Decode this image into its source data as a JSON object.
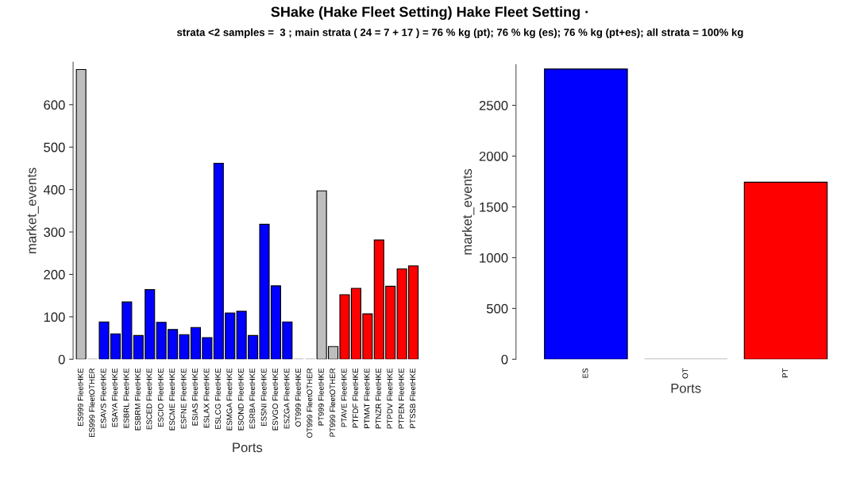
{
  "chart_data": [
    {
      "type": "bar",
      "title": "SHake (Hake Fleet Setting) Hake Fleet Setting ·",
      "subtitle": "strata <2 samples =  3 ; main strata ( 24 = 7 + 17 ) = 76 % kg (pt); 76 % kg (es); 76 % kg (pt+es); all strata = 100% kg",
      "xlabel": "Ports",
      "ylabel": "market_events",
      "categories": [
        "ES999 FleetHKE",
        "ES999 FleetOTHER",
        "ESAVS FleetHKE",
        "ESAYA FleetHKE",
        "ESBRL FleetHKE",
        "ESBRM FleetHKE",
        "ESCED FleetHKE",
        "ESCIO FleetHKE",
        "ESCME FleetHKE",
        "ESFNE FleetHKE",
        "ESIAS FleetHKE",
        "ESLAX FleetHKE",
        "ESLCG FleetHKE",
        "ESMGA FleetHKE",
        "ESOND FleetHKE",
        "ESRBA FleetHKE",
        "ESSNI FleetHKE",
        "ESVGO FleetHKE",
        "ESZGA FleetHKE",
        "OT999 FleetHKE",
        "OT999 FleetOTHER",
        "PT999 FleetHKE",
        "PT999 FleetOTHER",
        "PTAVE FleetHKE",
        "PTFDF FleetHKE",
        "PTMAT FleetHKE",
        "PTNZR FleetHKE",
        "PTPDV FleetHKE",
        "PTPEN FleetHKE",
        "PTSSB FleetHKE"
      ],
      "values": [
        683,
        0,
        88,
        60,
        135,
        56,
        164,
        87,
        70,
        58,
        75,
        51,
        462,
        109,
        113,
        56,
        318,
        173,
        88,
        0,
        0,
        397,
        30,
        152,
        167,
        107,
        281,
        172,
        213,
        220
      ],
      "colors": [
        "#bebebe",
        "#bebebe",
        "#0000ff",
        "#0000ff",
        "#0000ff",
        "#0000ff",
        "#0000ff",
        "#0000ff",
        "#0000ff",
        "#0000ff",
        "#0000ff",
        "#0000ff",
        "#0000ff",
        "#0000ff",
        "#0000ff",
        "#0000ff",
        "#0000ff",
        "#0000ff",
        "#0000ff",
        "#bebebe",
        "#bebebe",
        "#bebebe",
        "#bebebe",
        "#ff0000",
        "#ff0000",
        "#ff0000",
        "#ff0000",
        "#ff0000",
        "#ff0000",
        "#ff0000"
      ],
      "ylim": [
        0,
        700
      ],
      "yticks": [
        0,
        100,
        200,
        300,
        400,
        500,
        600
      ],
      "grid": false,
      "legend": false
    },
    {
      "type": "bar",
      "xlabel": "Ports",
      "ylabel": "market_events",
      "categories": [
        "ES",
        "OT",
        "PT"
      ],
      "values": [
        2857,
        0,
        1743
      ],
      "colors": [
        "#0000ff",
        "#bebebe",
        "#ff0000"
      ],
      "ylim": [
        0,
        2900
      ],
      "yticks": [
        0,
        500,
        1000,
        1500,
        2000,
        2500
      ],
      "grid": false,
      "legend": false
    }
  ]
}
